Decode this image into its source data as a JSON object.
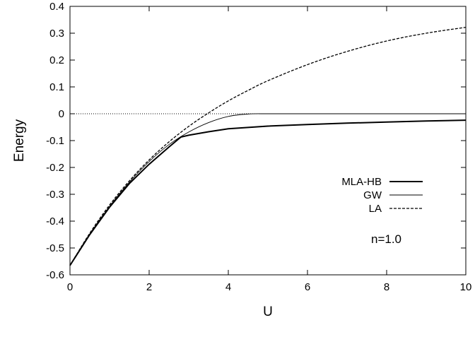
{
  "chart_data": {
    "type": "line",
    "xlabel": "U",
    "ylabel": "Energy",
    "xlim": [
      0,
      10
    ],
    "ylim": [
      -0.6,
      0.4
    ],
    "xticks": [
      "0",
      "2",
      "4",
      "6",
      "8",
      "10"
    ],
    "yticks": [
      "0.4",
      "0.3",
      "0.2",
      "0.1",
      "0",
      "-0.1",
      "-0.2",
      "-0.3",
      "-0.4",
      "-0.5",
      "-0.6"
    ],
    "grid": false,
    "legend_position": "right",
    "annotation": "n=1.0",
    "zero_line": true,
    "series": [
      {
        "name": "MLA-HB",
        "style": "solid-thick",
        "color": "#000000",
        "x": [
          0,
          0.5,
          1,
          1.5,
          2,
          2.5,
          2.8,
          3,
          3.5,
          4,
          5,
          6,
          7,
          8,
          9,
          10
        ],
        "y": [
          -0.565,
          -0.45,
          -0.348,
          -0.26,
          -0.188,
          -0.124,
          -0.087,
          -0.08,
          -0.067,
          -0.056,
          -0.046,
          -0.04,
          -0.035,
          -0.031,
          -0.027,
          -0.024
        ]
      },
      {
        "name": "GW",
        "style": "solid-thin",
        "color": "#000000",
        "x": [
          0,
          0.5,
          1,
          1.5,
          2,
          2.5,
          3,
          3.5,
          4,
          4.5,
          5,
          6,
          8,
          10
        ],
        "y": [
          -0.565,
          -0.448,
          -0.345,
          -0.255,
          -0.178,
          -0.115,
          -0.068,
          -0.033,
          -0.01,
          -0.001,
          0.0,
          0.0,
          0.0,
          0.0
        ]
      },
      {
        "name": "LA",
        "style": "dashed",
        "color": "#000000",
        "x": [
          0,
          0.5,
          1,
          1.5,
          2,
          2.5,
          3,
          3.5,
          4,
          4.5,
          5,
          6,
          7,
          8,
          9,
          10
        ],
        "y": [
          -0.565,
          -0.445,
          -0.34,
          -0.25,
          -0.172,
          -0.105,
          -0.047,
          0.003,
          0.048,
          0.087,
          0.123,
          0.183,
          0.232,
          0.271,
          0.3,
          0.322
        ]
      }
    ]
  }
}
